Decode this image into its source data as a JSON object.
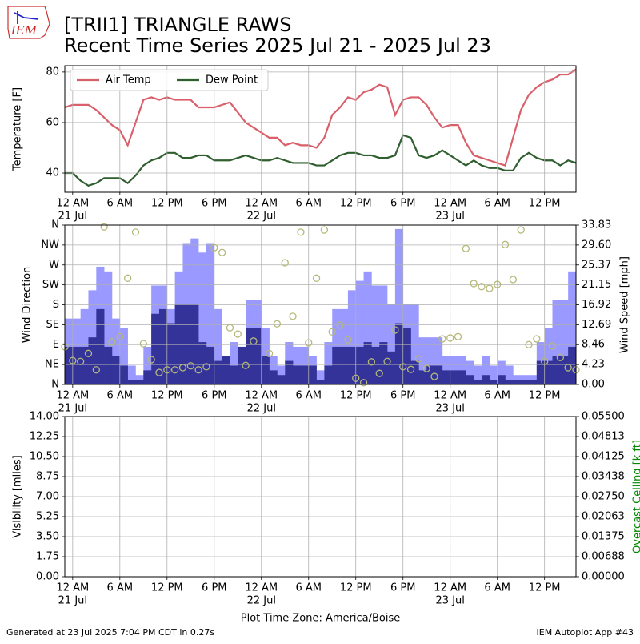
{
  "header": {
    "logo_text": "IEM",
    "title": "[TRII1] TRIANGLE RAWS",
    "subtitle": "Recent Time Series 2025 Jul 21 - 2025 Jul 23"
  },
  "footer": {
    "left": "Generated at 23 Jul 2025 7:04 PM CDT in 0.27s",
    "right": "IEM Autoplot App #43"
  },
  "chart_data": [
    {
      "type": "line",
      "ylabel": "Temperature [F]",
      "grid": true,
      "legend": "upper left",
      "xlim": [
        -1,
        64
      ],
      "ylim": [
        32.4,
        82.5
      ],
      "yticks": [
        40,
        60,
        80
      ],
      "xticks": [
        {
          "value": 0,
          "label": "12 AM"
        },
        {
          "value": 6,
          "label": "6 AM"
        },
        {
          "value": 12,
          "label": "12 PM"
        },
        {
          "value": 18,
          "label": "6 PM"
        },
        {
          "value": 24,
          "label": "12 AM"
        },
        {
          "value": 30,
          "label": "6 AM"
        },
        {
          "value": 36,
          "label": "12 PM"
        },
        {
          "value": 42,
          "label": "6 PM"
        },
        {
          "value": 48,
          "label": "12 AM"
        },
        {
          "value": 54,
          "label": "6 AM"
        },
        {
          "value": 60,
          "label": "12 PM"
        }
      ],
      "xdates": [
        {
          "value": 0,
          "label": "21 Jul"
        },
        {
          "value": 24,
          "label": "22 Jul"
        },
        {
          "value": 48,
          "label": "23 Jul"
        }
      ],
      "x": [
        -1,
        0,
        1,
        2,
        3,
        4,
        5,
        6,
        7,
        8,
        9,
        10,
        11,
        12,
        13,
        14,
        15,
        16,
        17,
        18,
        19,
        20,
        21,
        22,
        23,
        24,
        25,
        26,
        27,
        28,
        29,
        30,
        31,
        32,
        33,
        34,
        35,
        36,
        37,
        38,
        39,
        40,
        41,
        42,
        43,
        44,
        45,
        46,
        47,
        48,
        49,
        50,
        51,
        52,
        53,
        54,
        55,
        56,
        57,
        58,
        59,
        60,
        61,
        62,
        63,
        64
      ],
      "series": [
        {
          "name": "Air Temp",
          "color": "#d9606a",
          "values": [
            66,
            67,
            67,
            67,
            65,
            62,
            59,
            57,
            51,
            60,
            69,
            70,
            69,
            70,
            69,
            69,
            69,
            66,
            66,
            66,
            67,
            68,
            64,
            60,
            58,
            56,
            54,
            54,
            51,
            52,
            51,
            51,
            50,
            54,
            63,
            66,
            70,
            69,
            72,
            73,
            75,
            74,
            63,
            69,
            70,
            70,
            67,
            62,
            58,
            59,
            59,
            52,
            47,
            46,
            45,
            44,
            43,
            54,
            65,
            71,
            74,
            76,
            77,
            79,
            79,
            81
          ]
        },
        {
          "name": "Dew Point",
          "color": "#2f5e2f",
          "values": [
            40,
            40,
            37,
            35,
            36,
            38,
            38,
            38,
            36,
            39,
            43,
            45,
            46,
            48,
            48,
            46,
            46,
            47,
            47,
            45,
            45,
            45,
            46,
            47,
            46,
            45,
            45,
            46,
            45,
            44,
            44,
            44,
            43,
            43,
            45,
            47,
            48,
            48,
            47,
            47,
            46,
            46,
            47,
            55,
            54,
            47,
            46,
            47,
            49,
            47,
            45,
            43,
            45,
            43,
            42,
            42,
            41,
            41,
            46,
            48,
            46,
            45,
            45,
            43,
            45,
            44
          ]
        }
      ]
    },
    {
      "type": "bar",
      "ylabel": "Wind Direction",
      "y2label": "Wind Speed [mph]",
      "grid": true,
      "xlim": [
        -1,
        64
      ],
      "ylim": [
        0,
        360
      ],
      "y2lim": [
        0,
        33.83
      ],
      "yticks": [
        {
          "value": 0,
          "label": "N"
        },
        {
          "value": 45,
          "label": "NE"
        },
        {
          "value": 90,
          "label": "E"
        },
        {
          "value": 135,
          "label": "SE"
        },
        {
          "value": 180,
          "label": "S"
        },
        {
          "value": 225,
          "label": "SW"
        },
        {
          "value": 270,
          "label": "W"
        },
        {
          "value": 315,
          "label": "NW"
        },
        {
          "value": 360,
          "label": "N"
        }
      ],
      "y2ticks": [
        {
          "value": 0,
          "label": "0.00"
        },
        4.23,
        8.46,
        12.69,
        16.92,
        21.15,
        25.37,
        {
          "value": 29.6,
          "label": "29.60"
        },
        33.83
      ],
      "xticks": [
        {
          "value": 0,
          "label": "12 AM"
        },
        {
          "value": 6,
          "label": "6 AM"
        },
        {
          "value": 12,
          "label": "12 PM"
        },
        {
          "value": 18,
          "label": "6 PM"
        },
        {
          "value": 24,
          "label": "12 AM"
        },
        {
          "value": 30,
          "label": "6 AM"
        },
        {
          "value": 36,
          "label": "12 PM"
        },
        {
          "value": 42,
          "label": "6 PM"
        },
        {
          "value": 48,
          "label": "12 AM"
        },
        {
          "value": 54,
          "label": "6 AM"
        },
        {
          "value": 60,
          "label": "12 PM"
        }
      ],
      "xdates": [
        {
          "value": 0,
          "label": "21 Jul"
        },
        {
          "value": 24,
          "label": "22 Jul"
        },
        {
          "value": 48,
          "label": "23 Jul"
        }
      ],
      "x": [
        -1,
        0,
        1,
        2,
        3,
        4,
        5,
        6,
        7,
        8,
        9,
        10,
        11,
        12,
        13,
        14,
        15,
        16,
        17,
        18,
        19,
        20,
        21,
        22,
        23,
        24,
        25,
        26,
        27,
        28,
        29,
        30,
        31,
        32,
        33,
        34,
        35,
        36,
        37,
        38,
        39,
        40,
        41,
        42,
        43,
        44,
        45,
        46,
        47,
        48,
        49,
        50,
        51,
        52,
        53,
        54,
        55,
        56,
        57,
        58,
        59,
        60,
        61,
        62,
        63,
        64
      ],
      "series": [
        {
          "type": "bar",
          "axis": "y2",
          "color": "#9999ff",
          "values": [
            14,
            14,
            16,
            20,
            25,
            24,
            14,
            12,
            4,
            2,
            8,
            21,
            21,
            16,
            24,
            30,
            31,
            28,
            30,
            16,
            6,
            9,
            8,
            18,
            18,
            12,
            6,
            4,
            9,
            8,
            8,
            6,
            3,
            9,
            16,
            16,
            20,
            22,
            24,
            21,
            21,
            17,
            33,
            17,
            17,
            10,
            10,
            10,
            6,
            6,
            6,
            5,
            4,
            6,
            4,
            5,
            4,
            2,
            2,
            2,
            9,
            12,
            18,
            18,
            24,
            24
          ]
        },
        {
          "type": "bar",
          "axis": "y2",
          "color": "#333399",
          "values": [
            8,
            8,
            8,
            10,
            16,
            8,
            6,
            4,
            1,
            1,
            3,
            15,
            16,
            13,
            17,
            17,
            17,
            9,
            8,
            5,
            6,
            4,
            8,
            12,
            12,
            6,
            3,
            2,
            5,
            4,
            4,
            4,
            1,
            4,
            8,
            8,
            8,
            8,
            9,
            8,
            9,
            7,
            13,
            12,
            5,
            3,
            4,
            4,
            3,
            3,
            3,
            2,
            1,
            2,
            1,
            2,
            1,
            1,
            1,
            1,
            5,
            5,
            6,
            6,
            8,
            12
          ]
        },
        {
          "type": "scatter",
          "axis": "y",
          "color": "#b5b87a",
          "x": [
            -1,
            0,
            1,
            2,
            3,
            4,
            5,
            6,
            7,
            8,
            9,
            10,
            11,
            12,
            13,
            14,
            15,
            16,
            17,
            18,
            19,
            20,
            21,
            22,
            23,
            25,
            26,
            27,
            28,
            29,
            30,
            31,
            32,
            33,
            34,
            35,
            36,
            37,
            38,
            39,
            40,
            41,
            42,
            43,
            44,
            45,
            46,
            47,
            48,
            49,
            50,
            51,
            52,
            53,
            54,
            55,
            56,
            57,
            58,
            59,
            60,
            61,
            62,
            63,
            64
          ],
          "values": [
            85,
            54,
            52,
            70,
            33,
            356,
            96,
            108,
            240,
            344,
            92,
            56,
            27,
            33,
            33,
            38,
            42,
            33,
            40,
            309,
            298,
            128,
            114,
            43,
            98,
            70,
            137,
            275,
            154,
            344,
            94,
            240,
            349,
            119,
            134,
            101,
            14,
            4,
            51,
            25,
            52,
            123,
            40,
            34,
            58,
            36,
            18,
            103,
            105,
            108,
            307,
            228,
            221,
            217,
            226,
            316,
            237,
            349,
            90,
            103,
            52,
            87,
            61,
            38,
            33
          ]
        }
      ]
    },
    {
      "type": "line",
      "ylabel": "Visibility [miles]",
      "y2label": "Overcast Ceiling [k ft]",
      "xlabel": "Plot Time Zone: America/Boise",
      "grid": true,
      "xlim": [
        -1,
        64
      ],
      "ylim": [
        0,
        14
      ],
      "y2lim": [
        0,
        0.055
      ],
      "yticks": [
        {
          "value": 0,
          "label": "0.00"
        },
        1.75,
        {
          "value": 3.5,
          "label": "3.50"
        },
        5.25,
        {
          "value": 7,
          "label": "7.00"
        },
        8.75,
        {
          "value": 10.5,
          "label": "10.50"
        },
        12.25,
        {
          "value": 14,
          "label": "14.00"
        }
      ],
      "y2ticks": [
        {
          "value": 0,
          "label": "0.00000"
        },
        {
          "value": 0.006875,
          "label": "0.00688"
        },
        0.01375,
        {
          "value": 0.020625,
          "label": "0.02063"
        },
        {
          "value": 0.0275,
          "label": "0.02750"
        },
        {
          "value": 0.034375,
          "label": "0.03438"
        },
        0.04125,
        {
          "value": 0.048125,
          "label": "0.04813"
        },
        {
          "value": 0.055,
          "label": "0.05500"
        }
      ],
      "xticks": [
        {
          "value": 0,
          "label": "12 AM"
        },
        {
          "value": 6,
          "label": "6 AM"
        },
        {
          "value": 12,
          "label": "12 PM"
        },
        {
          "value": 18,
          "label": "6 PM"
        },
        {
          "value": 24,
          "label": "12 AM"
        },
        {
          "value": 30,
          "label": "6 AM"
        },
        {
          "value": 36,
          "label": "12 PM"
        },
        {
          "value": 42,
          "label": "6 PM"
        },
        {
          "value": 48,
          "label": "12 AM"
        },
        {
          "value": 54,
          "label": "6 AM"
        },
        {
          "value": 60,
          "label": "12 PM"
        }
      ],
      "xdates": [
        {
          "value": 0,
          "label": "21 Jul"
        },
        {
          "value": 24,
          "label": "22 Jul"
        },
        {
          "value": 48,
          "label": "23 Jul"
        }
      ],
      "series": []
    }
  ]
}
